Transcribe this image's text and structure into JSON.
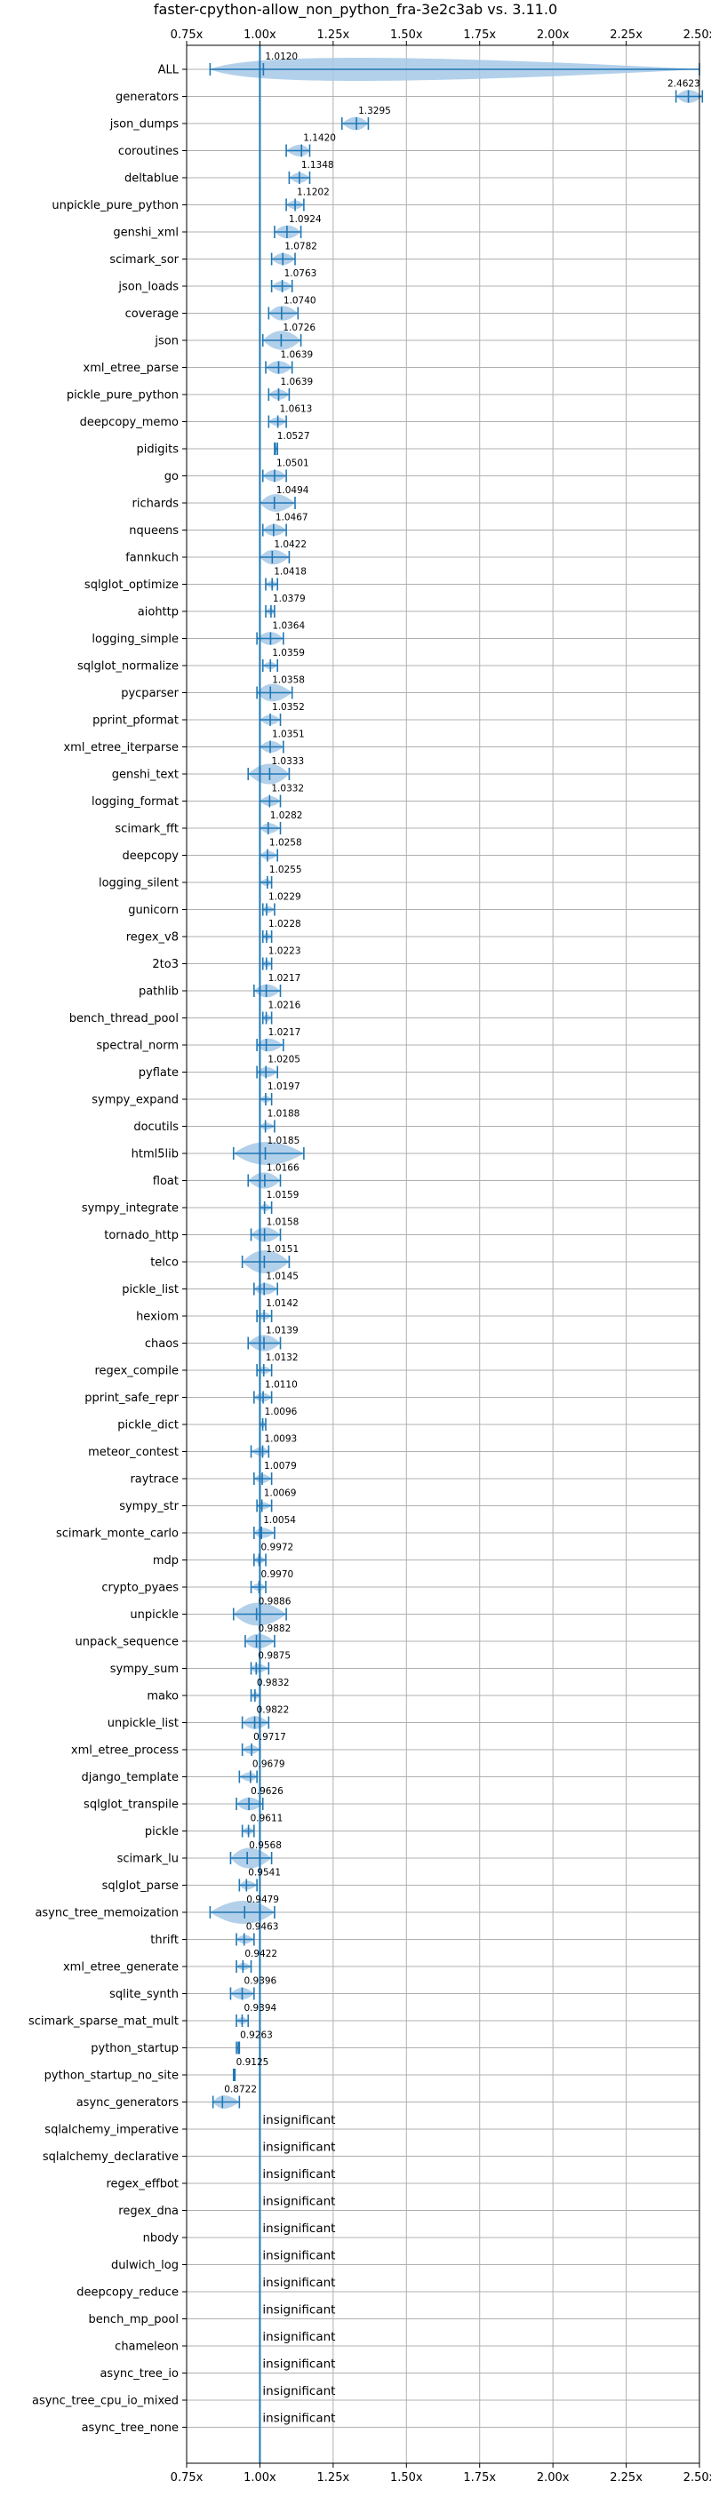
{
  "chart_data": {
    "type": "violin",
    "title": "faster-cpython-allow_non_python_fra-3e2c3ab vs. 3.11.0",
    "xlabel": "",
    "ylabel": "",
    "xlim": [
      0.75,
      2.5
    ],
    "xticks": [
      0.75,
      1.0,
      1.25,
      1.5,
      1.75,
      2.0,
      2.25,
      2.5
    ],
    "xtick_labels": [
      "0.75x",
      "1.00x",
      "1.25x",
      "1.50x",
      "1.75x",
      "2.00x",
      "2.25x",
      "2.50x"
    ],
    "reference_line": 1.0,
    "grid": true,
    "insignificant_label": "insignificant",
    "categories": [
      "ALL",
      "generators",
      "json_dumps",
      "coroutines",
      "deltablue",
      "unpickle_pure_python",
      "genshi_xml",
      "scimark_sor",
      "json_loads",
      "coverage",
      "json",
      "xml_etree_parse",
      "pickle_pure_python",
      "deepcopy_memo",
      "pidigits",
      "go",
      "richards",
      "nqueens",
      "fannkuch",
      "sqlglot_optimize",
      "aiohttp",
      "logging_simple",
      "sqlglot_normalize",
      "pycparser",
      "pprint_pformat",
      "xml_etree_iterparse",
      "genshi_text",
      "logging_format",
      "scimark_fft",
      "deepcopy",
      "logging_silent",
      "gunicorn",
      "regex_v8",
      "2to3",
      "pathlib",
      "bench_thread_pool",
      "spectral_norm",
      "pyflate",
      "sympy_expand",
      "docutils",
      "html5lib",
      "float",
      "sympy_integrate",
      "tornado_http",
      "telco",
      "pickle_list",
      "hexiom",
      "chaos",
      "regex_compile",
      "pprint_safe_repr",
      "pickle_dict",
      "meteor_contest",
      "raytrace",
      "sympy_str",
      "scimark_monte_carlo",
      "mdp",
      "crypto_pyaes",
      "unpickle",
      "unpack_sequence",
      "sympy_sum",
      "mako",
      "unpickle_list",
      "xml_etree_process",
      "django_template",
      "sqlglot_transpile",
      "pickle",
      "scimark_lu",
      "sqlglot_parse",
      "async_tree_memoization",
      "thrift",
      "xml_etree_generate",
      "sqlite_synth",
      "scimark_sparse_mat_mult",
      "python_startup",
      "python_startup_no_site",
      "async_generators",
      "sqlalchemy_imperative",
      "sqlalchemy_declarative",
      "regex_effbot",
      "regex_dna",
      "nbody",
      "dulwich_log",
      "deepcopy_reduce",
      "bench_mp_pool",
      "chameleon",
      "async_tree_io",
      "async_tree_cpu_io_mixed",
      "async_tree_none"
    ],
    "values": [
      1.012,
      2.4623,
      1.3295,
      1.142,
      1.1348,
      1.1202,
      1.0924,
      1.0782,
      1.0763,
      1.074,
      1.0726,
      1.0639,
      1.0639,
      1.0613,
      1.0527,
      1.0501,
      1.0494,
      1.0467,
      1.0422,
      1.0418,
      1.0379,
      1.0364,
      1.0359,
      1.0358,
      1.0352,
      1.0351,
      1.0333,
      1.0332,
      1.0282,
      1.0258,
      1.0255,
      1.0229,
      1.0228,
      1.0223,
      1.0217,
      1.0216,
      1.0217,
      1.0205,
      1.0197,
      1.0188,
      1.0185,
      1.0166,
      1.0159,
      1.0158,
      1.0151,
      1.0145,
      1.0142,
      1.0139,
      1.0132,
      1.011,
      1.0096,
      1.0093,
      1.0079,
      1.0069,
      1.0054,
      0.9972,
      0.997,
      0.9886,
      0.9882,
      0.9875,
      0.9832,
      0.9822,
      0.9717,
      0.9679,
      0.9626,
      0.9611,
      0.9568,
      0.9541,
      0.9479,
      0.9463,
      0.9422,
      0.9396,
      0.9394,
      0.9263,
      0.9125,
      0.8722,
      null,
      null,
      null,
      null,
      null,
      null,
      null,
      null,
      null,
      null,
      null,
      null
    ],
    "value_labels": [
      "1.0120",
      "2.4623",
      "1.3295",
      "1.1420",
      "1.1348",
      "1.1202",
      "1.0924",
      "1.0782",
      "1.0763",
      "1.0740",
      "1.0726",
      "1.0639",
      "1.0639",
      "1.0613",
      "1.0527",
      "1.0501",
      "1.0494",
      "1.0467",
      "1.0422",
      "1.0418",
      "1.0379",
      "1.0364",
      "1.0359",
      "1.0358",
      "1.0352",
      "1.0351",
      "1.0333",
      "1.0332",
      "1.0282",
      "1.0258",
      "1.0255",
      "1.0229",
      "1.0228",
      "1.0223",
      "1.0217",
      "1.0216",
      "1.0217",
      "1.0205",
      "1.0197",
      "1.0188",
      "1.0185",
      "1.0166",
      "1.0159",
      "1.0158",
      "1.0151",
      "1.0145",
      "1.0142",
      "1.0139",
      "1.0132",
      "1.0110",
      "1.0096",
      "1.0093",
      "1.0079",
      "1.0069",
      "1.0054",
      "0.9972",
      "0.9970",
      "0.9886",
      "0.9882",
      "0.9875",
      "0.9832",
      "0.9822",
      "0.9717",
      "0.9679",
      "0.9626",
      "0.9611",
      "0.9568",
      "0.9541",
      "0.9479",
      "0.9463",
      "0.9422",
      "0.9396",
      "0.9394",
      "0.9263",
      "0.9125",
      "0.8722",
      "",
      "",
      "",
      "",
      "",
      "",
      "",
      "",
      "",
      "",
      "",
      ""
    ],
    "ranges": [
      [
        0.83,
        2.5
      ],
      [
        2.42,
        2.51
      ],
      [
        1.28,
        1.37
      ],
      [
        1.09,
        1.17
      ],
      [
        1.1,
        1.17
      ],
      [
        1.09,
        1.15
      ],
      [
        1.05,
        1.14
      ],
      [
        1.04,
        1.12
      ],
      [
        1.04,
        1.11
      ],
      [
        1.03,
        1.13
      ],
      [
        1.01,
        1.14
      ],
      [
        1.02,
        1.11
      ],
      [
        1.03,
        1.1
      ],
      [
        1.03,
        1.09
      ],
      [
        1.05,
        1.06
      ],
      [
        1.01,
        1.09
      ],
      [
        1.0,
        1.12
      ],
      [
        1.01,
        1.09
      ],
      [
        1.0,
        1.1
      ],
      [
        1.02,
        1.06
      ],
      [
        1.02,
        1.05
      ],
      [
        0.99,
        1.08
      ],
      [
        1.01,
        1.06
      ],
      [
        0.99,
        1.11
      ],
      [
        1.0,
        1.07
      ],
      [
        1.0,
        1.08
      ],
      [
        0.96,
        1.1
      ],
      [
        1.0,
        1.07
      ],
      [
        1.0,
        1.07
      ],
      [
        1.0,
        1.06
      ],
      [
        1.0,
        1.04
      ],
      [
        1.01,
        1.05
      ],
      [
        1.01,
        1.04
      ],
      [
        1.01,
        1.04
      ],
      [
        0.98,
        1.07
      ],
      [
        1.01,
        1.04
      ],
      [
        0.99,
        1.08
      ],
      [
        0.99,
        1.06
      ],
      [
        1.0,
        1.04
      ],
      [
        1.0,
        1.05
      ],
      [
        0.91,
        1.15
      ],
      [
        0.96,
        1.07
      ],
      [
        1.0,
        1.04
      ],
      [
        0.97,
        1.07
      ],
      [
        0.94,
        1.1
      ],
      [
        0.98,
        1.06
      ],
      [
        0.99,
        1.04
      ],
      [
        0.96,
        1.07
      ],
      [
        0.99,
        1.04
      ],
      [
        0.98,
        1.04
      ],
      [
        1.0,
        1.02
      ],
      [
        0.97,
        1.03
      ],
      [
        0.98,
        1.04
      ],
      [
        0.99,
        1.04
      ],
      [
        0.98,
        1.05
      ],
      [
        0.98,
        1.02
      ],
      [
        0.97,
        1.02
      ],
      [
        0.91,
        1.09
      ],
      [
        0.95,
        1.05
      ],
      [
        0.97,
        1.03
      ],
      [
        0.97,
        1.0
      ],
      [
        0.94,
        1.03
      ],
      [
        0.94,
        1.0
      ],
      [
        0.93,
        0.99
      ],
      [
        0.92,
        1.01
      ],
      [
        0.94,
        0.98
      ],
      [
        0.9,
        1.04
      ],
      [
        0.93,
        0.99
      ],
      [
        0.83,
        1.05
      ],
      [
        0.92,
        0.98
      ],
      [
        0.92,
        0.97
      ],
      [
        0.9,
        0.98
      ],
      [
        0.92,
        0.96
      ],
      [
        0.92,
        0.93
      ],
      [
        0.91,
        0.915
      ],
      [
        0.84,
        0.93
      ],
      null,
      null,
      null,
      null,
      null,
      null,
      null,
      null,
      null,
      null,
      null,
      null
    ]
  },
  "colors": {
    "violin_fill": "#a6c8e6",
    "violin_edge": "#1f77b4",
    "reference_line": "#1f77b4",
    "grid": "#b0b0b0",
    "axes": "#000000",
    "background": "#ffffff"
  }
}
